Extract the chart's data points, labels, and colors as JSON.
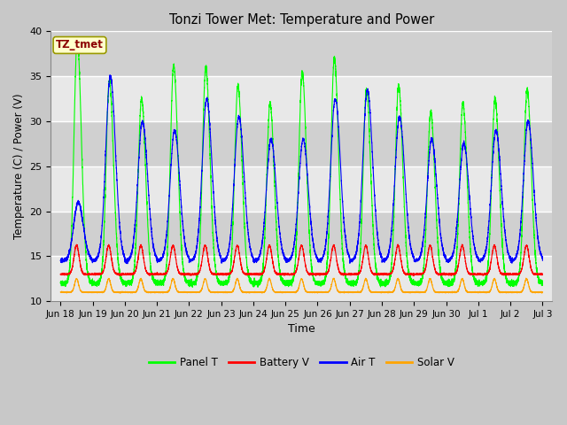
{
  "title": "Tonzi Tower Met: Temperature and Power",
  "xlabel": "Time",
  "ylabel": "Temperature (C) / Power (V)",
  "ylim": [
    10,
    40
  ],
  "tick_labels": [
    "Jun 18",
    "Jun 19",
    "Jun 20",
    "Jun 21",
    "Jun 22",
    "Jun 23",
    "Jun 24",
    "Jun 25",
    "Jun 26",
    "Jun 27",
    "Jun 28",
    "Jun 29",
    "Jun 30",
    "Jul 1",
    "Jul 2",
    "Jul 3"
  ],
  "tick_positions": [
    0,
    1,
    2,
    3,
    4,
    5,
    6,
    7,
    8,
    9,
    10,
    11,
    12,
    13,
    14,
    15
  ],
  "legend_labels": [
    "Panel T",
    "Battery V",
    "Air T",
    "Solar V"
  ],
  "legend_colors": [
    "#00ff00",
    "#ff0000",
    "#0000ff",
    "#ffa500"
  ],
  "annotation_text": "TZ_tmet",
  "annotation_bg": "#ffffcc",
  "annotation_fg": "#8b0000",
  "fig_bg": "#c8c8c8",
  "plot_bg_light": "#e8e8e8",
  "plot_bg_dark": "#d0d0d0",
  "grid_color": "#ffffff",
  "num_days": 15,
  "samples_per_day": 480,
  "panel_peaks": [
    39,
    34.5,
    32.5,
    36.2,
    36,
    34,
    32,
    35.5,
    37,
    33.5,
    34,
    31,
    32,
    32.5,
    33.5
  ],
  "panel_night": 12,
  "air_peaks": [
    21,
    35,
    30,
    29,
    32.5,
    30.5,
    28,
    28,
    32.5,
    33.5,
    30.5,
    28,
    27.5,
    29,
    30
  ],
  "air_night": 14.5,
  "batt_base": 13,
  "batt_peak": 16.2,
  "solar_base": 11,
  "solar_peak": 12.5
}
